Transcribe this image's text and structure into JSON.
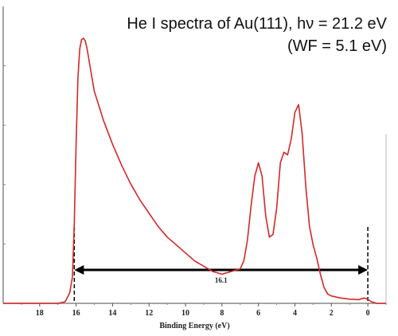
{
  "chart_data": {
    "type": "line",
    "title": "",
    "annotations": [
      "He I spectra of Au(111), hν = 21.2 eV",
      "(WF = 5.1 eV)"
    ],
    "xlabel": "Binding Energy (eV)",
    "ylabel": "",
    "xlim": [
      20,
      -1
    ],
    "x_reversed": true,
    "ylim": [
      0,
      1
    ],
    "x_ticks": [
      18,
      16,
      14,
      12,
      10,
      8,
      6,
      4,
      2,
      0
    ],
    "y_tick_labels": false,
    "grid": false,
    "legend": "none",
    "series": [
      {
        "color": "#d62728",
        "x": [
          20.0,
          17.0,
          16.6,
          16.35,
          16.2,
          16.1,
          16.0,
          15.9,
          15.8,
          15.7,
          15.6,
          15.5,
          15.4,
          15.2,
          15.0,
          14.5,
          14.0,
          13.5,
          13.0,
          12.5,
          12.0,
          11.5,
          11.0,
          10.5,
          10.0,
          9.5,
          9.0,
          8.5,
          8.0,
          7.5,
          7.0,
          6.8,
          6.6,
          6.4,
          6.2,
          6.0,
          5.8,
          5.6,
          5.4,
          5.2,
          5.0,
          4.8,
          4.6,
          4.4,
          4.2,
          4.0,
          3.8,
          3.6,
          3.4,
          3.2,
          3.0,
          2.8,
          2.6,
          2.4,
          2.2,
          2.0,
          1.5,
          1.0,
          0.5,
          0.2,
          0.0,
          -0.2,
          -0.5,
          -1.0
        ],
        "y": [
          0.0,
          0.0,
          0.006,
          0.04,
          0.1,
          0.3,
          0.6,
          0.85,
          0.96,
          0.995,
          1.0,
          0.99,
          0.96,
          0.88,
          0.8,
          0.69,
          0.6,
          0.52,
          0.45,
          0.39,
          0.34,
          0.29,
          0.25,
          0.22,
          0.19,
          0.16,
          0.14,
          0.12,
          0.11,
          0.12,
          0.13,
          0.16,
          0.24,
          0.37,
          0.48,
          0.53,
          0.48,
          0.33,
          0.25,
          0.26,
          0.36,
          0.53,
          0.57,
          0.56,
          0.62,
          0.72,
          0.75,
          0.64,
          0.44,
          0.29,
          0.22,
          0.17,
          0.11,
          0.06,
          0.035,
          0.028,
          0.02,
          0.016,
          0.014,
          0.02,
          0.015,
          0.006,
          0.0,
          0.0
        ]
      }
    ],
    "span": {
      "from": 16.1,
      "to": 0.0,
      "label": "16.1"
    }
  }
}
